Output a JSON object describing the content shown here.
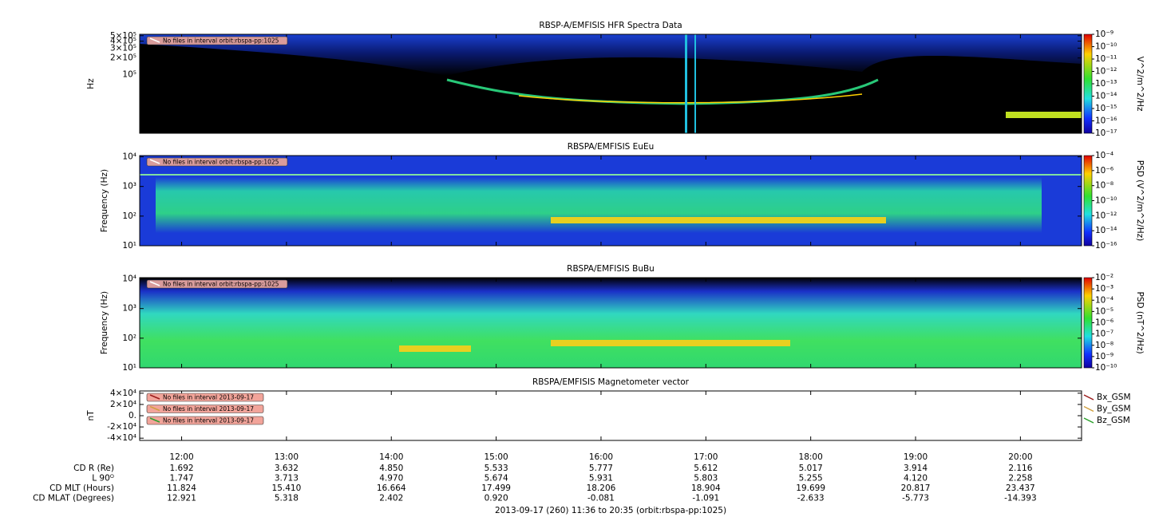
{
  "x_axis": {
    "xlim": [
      696,
      1235
    ],
    "xticks": [
      {
        "value": 720,
        "label": "12:00"
      },
      {
        "value": 780,
        "label": "13:00"
      },
      {
        "value": 840,
        "label": "14:00"
      },
      {
        "value": 900,
        "label": "15:00"
      },
      {
        "value": 960,
        "label": "16:00"
      },
      {
        "value": 1020,
        "label": "17:00"
      },
      {
        "value": 1080,
        "label": "18:00"
      },
      {
        "value": 1140,
        "label": "19:00"
      },
      {
        "value": 1200,
        "label": "20:00"
      }
    ]
  },
  "chart_data": [
    {
      "type": "spectrogram",
      "title": "RBSP-A/EMFISIS  HFR Spectra Data",
      "ylabel": "Hz",
      "log_y": true,
      "ylim": [
        9000,
        530000
      ],
      "yticks": [
        {
          "value": 500000,
          "label": "5×10⁵"
        },
        {
          "value": 400000,
          "label": "4×10⁵"
        },
        {
          "value": 300000,
          "label": "3×10⁵"
        },
        {
          "value": 200000,
          "label": "2×10⁵"
        },
        {
          "value": 100000,
          "label": "10⁵"
        }
      ],
      "zlabel": "V^2/m^2/Hz",
      "zlim": [
        1e-17,
        1e-09
      ],
      "zticks": [
        {
          "value": 1e-09,
          "label": "10⁻⁹"
        },
        {
          "value": 1e-10,
          "label": "10⁻¹⁰"
        },
        {
          "value": 1e-11,
          "label": "10⁻¹¹"
        },
        {
          "value": 1e-12,
          "label": "10⁻¹²"
        },
        {
          "value": 1e-13,
          "label": "10⁻¹³"
        },
        {
          "value": 1e-14,
          "label": "10⁻¹⁴"
        },
        {
          "value": 1e-15,
          "label": "10⁻¹⁵"
        },
        {
          "value": 1e-16,
          "label": "10⁻¹⁶"
        },
        {
          "value": 1e-17,
          "label": "10⁻¹⁷"
        }
      ],
      "annotations": [
        "No files in interval orbit:rbspa-pp:1025"
      ]
    },
    {
      "type": "spectrogram",
      "title": "RBSPA/EMFISIS  EuEu",
      "ylabel": "Frequency (Hz)",
      "log_y": true,
      "ylim": [
        10,
        11000
      ],
      "yticks": [
        {
          "value": 10000,
          "label": "10⁴"
        },
        {
          "value": 1000,
          "label": "10³"
        },
        {
          "value": 100,
          "label": "10²"
        },
        {
          "value": 10,
          "label": "10¹"
        }
      ],
      "zlabel": "PSD (V^2/m^2/Hz)",
      "zlim": [
        1e-16,
        0.0001
      ],
      "zticks": [
        {
          "value": 0.0001,
          "label": "10⁻⁴"
        },
        {
          "value": 1e-06,
          "label": "10⁻⁶"
        },
        {
          "value": 1e-08,
          "label": "10⁻⁸"
        },
        {
          "value": 1e-10,
          "label": "10⁻¹⁰"
        },
        {
          "value": 1e-12,
          "label": "10⁻¹²"
        },
        {
          "value": 1e-14,
          "label": "10⁻¹⁴"
        },
        {
          "value": 1e-16,
          "label": "10⁻¹⁶"
        }
      ],
      "annotations": [
        "No files in interval orbit:rbspa-pp:1025"
      ]
    },
    {
      "type": "spectrogram",
      "title": "RBSPA/EMFISIS  BuBu",
      "ylabel": "Frequency (Hz)",
      "log_y": true,
      "ylim": [
        10,
        11000
      ],
      "yticks": [
        {
          "value": 10000,
          "label": "10⁴"
        },
        {
          "value": 1000,
          "label": "10³"
        },
        {
          "value": 100,
          "label": "10²"
        },
        {
          "value": 10,
          "label": "10¹"
        }
      ],
      "zlabel": "PSD (nT^2/Hz)",
      "zlim": [
        1e-10,
        0.01
      ],
      "zticks": [
        {
          "value": 0.01,
          "label": "10⁻²"
        },
        {
          "value": 0.001,
          "label": "10⁻³"
        },
        {
          "value": 0.0001,
          "label": "10⁻⁴"
        },
        {
          "value": 1e-05,
          "label": "10⁻⁵"
        },
        {
          "value": 1e-06,
          "label": "10⁻⁶"
        },
        {
          "value": 1e-07,
          "label": "10⁻⁷"
        },
        {
          "value": 1e-08,
          "label": "10⁻⁸"
        },
        {
          "value": 1e-09,
          "label": "10⁻⁹"
        },
        {
          "value": 1e-10,
          "label": "10⁻¹⁰"
        }
      ],
      "annotations": [
        "No files in interval orbit:rbspa-pp:1025"
      ]
    },
    {
      "type": "line",
      "title": "RBSPA/EMFISIS  Magnetometer vector",
      "ylabel": "nT",
      "log_y": false,
      "ylim": [
        -44000,
        44000
      ],
      "yticks": [
        {
          "value": 40000,
          "label": "4×10⁴"
        },
        {
          "value": 20000,
          "label": "2×10⁴"
        },
        {
          "value": 0,
          "label": "0."
        },
        {
          "value": -20000,
          "label": "-2×10⁴"
        },
        {
          "value": -40000,
          "label": "-4×10⁴"
        }
      ],
      "series": [
        {
          "name": "Bx_GSM",
          "color": "#9b1c1c"
        },
        {
          "name": "By_GSM",
          "color": "#d0a040"
        },
        {
          "name": "Bz_GSM",
          "color": "#2ca02c"
        }
      ],
      "annotations": [
        "No files in interval 2013-09-17",
        "No files in interval 2013-09-17",
        "No files in interval 2013-09-17"
      ]
    }
  ],
  "ephemeris": {
    "rows": [
      {
        "label": "CD R (Re)",
        "values": [
          "1.692",
          "3.632",
          "4.850",
          "5.533",
          "5.777",
          "5.612",
          "5.017",
          "3.914",
          "2.116"
        ]
      },
      {
        "label": "L 90ᴼ",
        "values": [
          "1.747",
          "3.713",
          "4.970",
          "5.674",
          "5.931",
          "5.803",
          "5.255",
          "4.120",
          "2.258"
        ]
      },
      {
        "label": "CD MLT (Hours)",
        "values": [
          "11.824",
          "15.410",
          "16.664",
          "17.499",
          "18.206",
          "18.904",
          "19.699",
          "20.817",
          "23.437"
        ]
      },
      {
        "label": "CD MLAT (Degrees)",
        "values": [
          "12.921",
          "5.318",
          "2.402",
          "0.920",
          "-0.081",
          "-1.091",
          "-2.633",
          "-5.773",
          "-14.393"
        ]
      }
    ]
  },
  "footer": "2013-09-17 (260) 11:36 to 20:35 (orbit:rbspa-pp:1025)"
}
